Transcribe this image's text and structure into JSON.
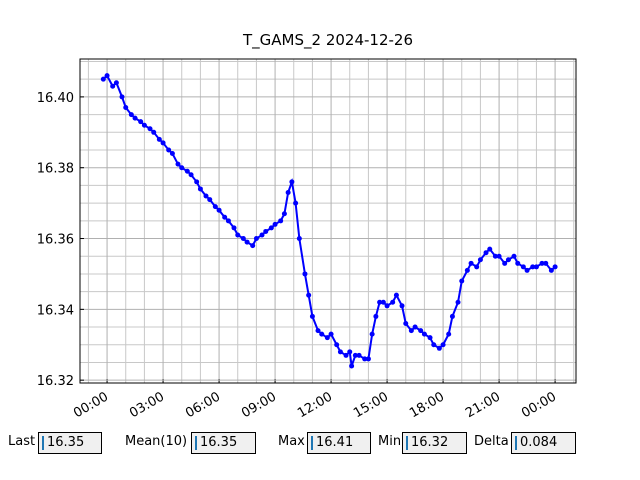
{
  "chart_data": {
    "type": "line",
    "title": "T_GAMS_2 2024-12-26",
    "x": [
      -0.2,
      0.0,
      0.3,
      0.5,
      0.8,
      1.0,
      1.3,
      1.5,
      1.8,
      2.0,
      2.3,
      2.5,
      2.8,
      3.0,
      3.3,
      3.5,
      3.8,
      4.0,
      4.3,
      4.5,
      4.8,
      5.0,
      5.3,
      5.5,
      5.8,
      6.0,
      6.3,
      6.5,
      6.8,
      7.0,
      7.3,
      7.5,
      7.8,
      8.0,
      8.3,
      8.5,
      8.8,
      9.0,
      9.3,
      9.5,
      9.7,
      9.9,
      10.1,
      10.3,
      10.6,
      10.8,
      11.0,
      11.3,
      11.5,
      11.8,
      12.0,
      12.3,
      12.5,
      12.8,
      13.0,
      13.1,
      13.3,
      13.5,
      13.8,
      14.0,
      14.2,
      14.4,
      14.6,
      14.8,
      15.0,
      15.3,
      15.5,
      15.8,
      16.0,
      16.3,
      16.5,
      16.8,
      17.0,
      17.3,
      17.5,
      17.8,
      18.0,
      18.3,
      18.5,
      18.8,
      19.0,
      19.3,
      19.5,
      19.8,
      20.0,
      20.3,
      20.5,
      20.8,
      21.0,
      21.3,
      21.5,
      21.8,
      22.0,
      22.3,
      22.5,
      22.8,
      23.0,
      23.3,
      23.5,
      23.8,
      24.0
    ],
    "series": [
      {
        "name": "T_GAMS_2",
        "color": "#0000ff",
        "values": [
          16.405,
          16.406,
          16.403,
          16.404,
          16.4,
          16.397,
          16.395,
          16.394,
          16.393,
          16.392,
          16.391,
          16.39,
          16.388,
          16.387,
          16.385,
          16.384,
          16.381,
          16.38,
          16.379,
          16.378,
          16.376,
          16.374,
          16.372,
          16.371,
          16.369,
          16.368,
          16.366,
          16.365,
          16.363,
          16.361,
          16.36,
          16.359,
          16.358,
          16.36,
          16.361,
          16.362,
          16.363,
          16.364,
          16.365,
          16.367,
          16.373,
          16.376,
          16.37,
          16.36,
          16.35,
          16.344,
          16.338,
          16.334,
          16.333,
          16.332,
          16.333,
          16.33,
          16.328,
          16.327,
          16.328,
          16.324,
          16.327,
          16.327,
          16.326,
          16.326,
          16.333,
          16.338,
          16.342,
          16.342,
          16.341,
          16.342,
          16.344,
          16.341,
          16.336,
          16.334,
          16.335,
          16.334,
          16.333,
          16.332,
          16.33,
          16.329,
          16.33,
          16.333,
          16.338,
          16.342,
          16.348,
          16.351,
          16.353,
          16.352,
          16.354,
          16.356,
          16.357,
          16.355,
          16.355,
          16.353,
          16.354,
          16.355,
          16.353,
          16.352,
          16.351,
          16.352,
          16.352,
          16.353,
          16.353,
          16.351,
          16.352
        ]
      }
    ],
    "xlim": [
      -1.45,
      25.12
    ],
    "ylim": [
      16.3192,
      16.4107
    ],
    "xticks": [
      {
        "value": 0,
        "label": "00:00"
      },
      {
        "value": 3,
        "label": "03:00"
      },
      {
        "value": 6,
        "label": "06:00"
      },
      {
        "value": 9,
        "label": "09:00"
      },
      {
        "value": 12,
        "label": "12:00"
      },
      {
        "value": 15,
        "label": "15:00"
      },
      {
        "value": 18,
        "label": "18:00"
      },
      {
        "value": 21,
        "label": "21:00"
      },
      {
        "value": 24,
        "label": "00:00"
      }
    ],
    "yticks": [
      16.32,
      16.34,
      16.36,
      16.38,
      {
        "value": 16.4,
        "label": "16.40"
      }
    ],
    "xminorticks": [
      -1,
      1,
      2,
      4,
      5,
      7,
      8,
      10,
      11,
      13,
      14,
      16,
      17,
      19,
      20,
      22,
      23,
      25
    ],
    "yminorticks": [
      16.325,
      16.33,
      16.335,
      16.345,
      16.35,
      16.355,
      16.365,
      16.37,
      16.375,
      16.385,
      16.39,
      16.395,
      16.405,
      16.41
    ],
    "grid": true
  },
  "controls": [
    {
      "label": "Last",
      "value": 16.35
    },
    {
      "label": "Mean(10)",
      "value": 16.35
    },
    {
      "label": "Max",
      "value": 16.41
    },
    {
      "label": "Min",
      "value": 16.32
    },
    {
      "label": "Delta",
      "value": 0.084
    }
  ]
}
